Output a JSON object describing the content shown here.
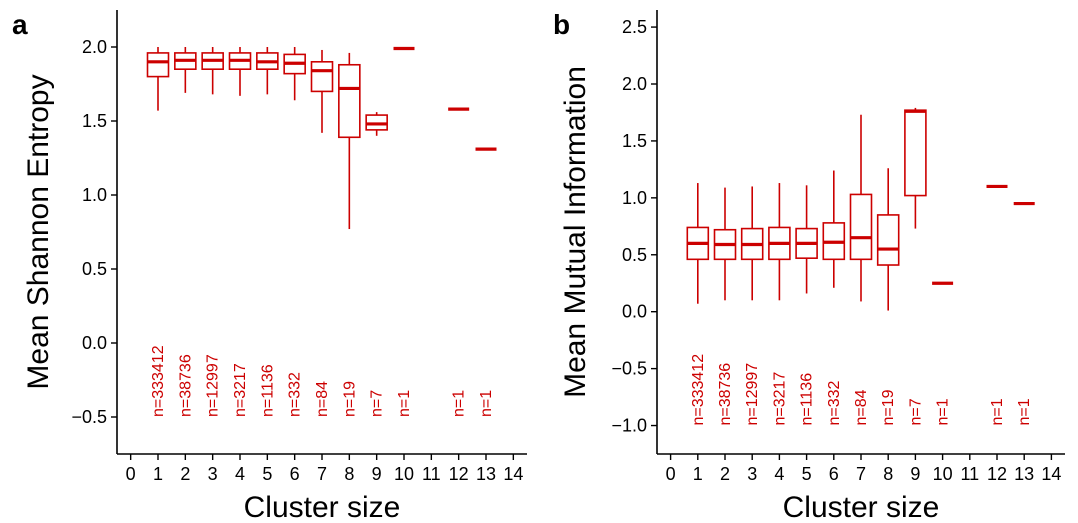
{
  "chart_data": [
    {
      "panel": "a",
      "type": "box",
      "xlabel": "Cluster size",
      "ylabel": "Mean Shannon Entropy",
      "xlim": [
        -0.5,
        14.5
      ],
      "ylim": [
        -0.75,
        2.25
      ],
      "xticks": [
        "0",
        "1",
        "2",
        "3",
        "4",
        "5",
        "6",
        "7",
        "8",
        "9",
        "10",
        "11",
        "12",
        "13",
        "14"
      ],
      "yticks": [
        "−0.5",
        "0.0",
        "0.5",
        "1.0",
        "1.5",
        "2.0"
      ],
      "ytick_values": [
        -0.5,
        0.0,
        0.5,
        1.0,
        1.5,
        2.0
      ],
      "count_label_y": -0.5,
      "color": "#cc0000",
      "boxes": [
        {
          "x": 1,
          "min": 1.57,
          "q1": 1.8,
          "median": 1.9,
          "q3": 1.96,
          "max": 2.0,
          "n": "n=333412"
        },
        {
          "x": 2,
          "min": 1.69,
          "q1": 1.85,
          "median": 1.91,
          "q3": 1.96,
          "max": 2.0,
          "n": "n=38736"
        },
        {
          "x": 3,
          "min": 1.68,
          "q1": 1.85,
          "median": 1.91,
          "q3": 1.96,
          "max": 2.0,
          "n": "n=12997"
        },
        {
          "x": 4,
          "min": 1.67,
          "q1": 1.85,
          "median": 1.91,
          "q3": 1.96,
          "max": 2.0,
          "n": "n=3217"
        },
        {
          "x": 5,
          "min": 1.68,
          "q1": 1.85,
          "median": 1.9,
          "q3": 1.96,
          "max": 2.0,
          "n": "n=1136"
        },
        {
          "x": 6,
          "min": 1.64,
          "q1": 1.82,
          "median": 1.89,
          "q3": 1.95,
          "max": 2.0,
          "n": "n=332"
        },
        {
          "x": 7,
          "min": 1.42,
          "q1": 1.7,
          "median": 1.84,
          "q3": 1.9,
          "max": 1.98,
          "n": "n=84"
        },
        {
          "x": 8,
          "min": 0.77,
          "q1": 1.39,
          "median": 1.72,
          "q3": 1.88,
          "max": 1.96,
          "n": "n=19"
        },
        {
          "x": 9,
          "min": 1.4,
          "q1": 1.44,
          "median": 1.48,
          "q3": 1.54,
          "max": 1.56,
          "n": "n=7"
        },
        {
          "x": 10,
          "min": 1.99,
          "q1": 1.99,
          "median": 1.99,
          "q3": 1.99,
          "max": 1.99,
          "n": "n=1"
        },
        {
          "x": 12,
          "min": 1.58,
          "q1": 1.58,
          "median": 1.58,
          "q3": 1.58,
          "max": 1.58,
          "n": "n=1"
        },
        {
          "x": 13,
          "min": 1.31,
          "q1": 1.31,
          "median": 1.31,
          "q3": 1.31,
          "max": 1.31,
          "n": "n=1"
        }
      ]
    },
    {
      "panel": "b",
      "type": "box",
      "xlabel": "Cluster size",
      "ylabel": "Mean Mutual Information",
      "xlim": [
        -0.5,
        14.5
      ],
      "ylim": [
        -1.25,
        2.65
      ],
      "xticks": [
        "0",
        "1",
        "2",
        "3",
        "4",
        "5",
        "6",
        "7",
        "8",
        "9",
        "10",
        "11",
        "12",
        "13",
        "14"
      ],
      "yticks": [
        "−1.0",
        "−0.5",
        "0.0",
        "0.5",
        "1.0",
        "1.5",
        "2.0",
        "2.5"
      ],
      "ytick_values": [
        -1.0,
        -0.5,
        0.0,
        0.5,
        1.0,
        1.5,
        2.0,
        2.5
      ],
      "count_label_y": -1.0,
      "color": "#cc0000",
      "boxes": [
        {
          "x": 1,
          "min": 0.07,
          "q1": 0.46,
          "median": 0.6,
          "q3": 0.74,
          "max": 1.13,
          "n": "n=333412"
        },
        {
          "x": 2,
          "min": 0.1,
          "q1": 0.46,
          "median": 0.59,
          "q3": 0.72,
          "max": 1.09,
          "n": "n=38736"
        },
        {
          "x": 3,
          "min": 0.1,
          "q1": 0.46,
          "median": 0.59,
          "q3": 0.73,
          "max": 1.1,
          "n": "n=12997"
        },
        {
          "x": 4,
          "min": 0.1,
          "q1": 0.46,
          "median": 0.6,
          "q3": 0.74,
          "max": 1.13,
          "n": "n=3217"
        },
        {
          "x": 5,
          "min": 0.16,
          "q1": 0.47,
          "median": 0.6,
          "q3": 0.73,
          "max": 1.11,
          "n": "n=1136"
        },
        {
          "x": 6,
          "min": 0.21,
          "q1": 0.46,
          "median": 0.61,
          "q3": 0.78,
          "max": 1.24,
          "n": "n=332"
        },
        {
          "x": 7,
          "min": 0.09,
          "q1": 0.46,
          "median": 0.65,
          "q3": 1.03,
          "max": 1.73,
          "n": "n=84"
        },
        {
          "x": 8,
          "min": 0.01,
          "q1": 0.41,
          "median": 0.55,
          "q3": 0.85,
          "max": 1.26,
          "n": "n=19"
        },
        {
          "x": 9,
          "min": 0.73,
          "q1": 1.02,
          "median": 1.76,
          "q3": 1.77,
          "max": 1.79,
          "n": "n=7"
        },
        {
          "x": 10,
          "min": 0.25,
          "q1": 0.25,
          "median": 0.25,
          "q3": 0.25,
          "max": 0.25,
          "n": "n=1"
        },
        {
          "x": 12,
          "min": 1.1,
          "q1": 1.1,
          "median": 1.1,
          "q3": 1.1,
          "max": 1.1,
          "n": "n=1"
        },
        {
          "x": 13,
          "min": 0.95,
          "q1": 0.95,
          "median": 0.95,
          "q3": 0.95,
          "max": 0.95,
          "n": "n=1"
        }
      ]
    }
  ]
}
